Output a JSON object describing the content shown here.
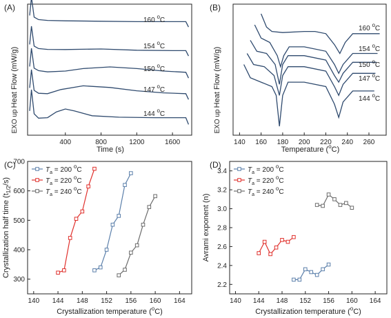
{
  "chart_data": [
    {
      "panel": "(A)",
      "type": "line",
      "xlabel": "Time (s)",
      "ylabel": "Heat Flow (mW/g)",
      "exo_label": "EXO up",
      "x_ticks": [
        "400",
        "800",
        "1200",
        "1600"
      ],
      "xlim": [
        0,
        1800
      ],
      "series": [
        {
          "name": "160 °C",
          "x": [
            0,
            20,
            50,
            100,
            200,
            400,
            800,
            1200,
            1600,
            1750,
            1780
          ],
          "y": [
            0.8,
            3.0,
            0.6,
            0.3,
            0.2,
            0.15,
            0.1,
            0.05,
            0.05,
            0.05,
            -0.6
          ]
        },
        {
          "name": "154 °C",
          "x": [
            0,
            20,
            50,
            100,
            200,
            400,
            800,
            1200,
            1600,
            1750,
            1780
          ],
          "y": [
            0.8,
            3.0,
            0.6,
            0.3,
            0.2,
            0.18,
            0.25,
            0.1,
            0.05,
            0.05,
            -0.6
          ]
        },
        {
          "name": "150 °C",
          "x": [
            0,
            20,
            50,
            100,
            200,
            400,
            600,
            900,
            1200,
            1500,
            1750,
            1780
          ],
          "y": [
            0.8,
            3.0,
            0.6,
            0.3,
            0.15,
            0.25,
            0.55,
            0.75,
            0.55,
            0.25,
            0.1,
            -0.6
          ]
        },
        {
          "name": "147 °C",
          "x": [
            0,
            20,
            50,
            100,
            200,
            350,
            600,
            900,
            1200,
            1500,
            1750,
            1780
          ],
          "y": [
            0.8,
            3.0,
            0.5,
            0.15,
            0.1,
            0.6,
            1.05,
            0.85,
            0.45,
            0.2,
            0.1,
            -0.6
          ]
        },
        {
          "name": "144 °C",
          "x": [
            0,
            20,
            50,
            100,
            200,
            300,
            400,
            500,
            700,
            1000,
            1400,
            1750,
            1780
          ],
          "y": [
            0.8,
            3.0,
            0.5,
            0.05,
            0.1,
            0.7,
            1.0,
            0.8,
            0.3,
            0.15,
            0.1,
            0.1,
            -0.6
          ]
        }
      ]
    },
    {
      "panel": "(B)",
      "type": "line",
      "xlabel": "Temperature (°C)",
      "ylabel": "Heat Flow (mW/g)",
      "exo_label": "EXO up",
      "x_ticks": [
        "140",
        "160",
        "180",
        "200",
        "220",
        "240",
        "260"
      ],
      "xlim": [
        134,
        276
      ],
      "series": [
        {
          "name": "160 °C",
          "x": [
            160,
            165,
            170,
            180,
            200,
            210,
            220,
            228,
            233,
            238,
            245,
            270
          ],
          "y": [
            4.7,
            4.1,
            3.9,
            3.85,
            3.9,
            3.9,
            3.8,
            3.3,
            2.9,
            3.4,
            3.8,
            3.8
          ]
        },
        {
          "name": "154 °C",
          "x": [
            154,
            160,
            168,
            175,
            178,
            181,
            186,
            200,
            220,
            228,
            232,
            236,
            245,
            268
          ],
          "y": [
            4.2,
            3.6,
            3.4,
            2.8,
            2.3,
            2.8,
            3.2,
            3.2,
            3.0,
            2.4,
            2.0,
            2.4,
            2.9,
            2.9
          ]
        },
        {
          "name": "150 °C",
          "x": [
            150,
            156,
            165,
            173,
            177,
            180,
            185,
            200,
            220,
            228,
            232,
            236,
            245,
            267
          ],
          "y": [
            3.5,
            3.0,
            2.9,
            2.4,
            1.5,
            2.4,
            2.8,
            2.8,
            2.6,
            1.9,
            1.6,
            2.0,
            2.5,
            2.5
          ]
        },
        {
          "name": "147 °C",
          "x": [
            147,
            153,
            163,
            172,
            177,
            180,
            185,
            200,
            220,
            228,
            232,
            236,
            245,
            266
          ],
          "y": [
            2.9,
            2.4,
            2.3,
            1.9,
            1.0,
            1.9,
            2.3,
            2.3,
            2.1,
            1.4,
            1.0,
            1.5,
            2.0,
            2.0
          ]
        },
        {
          "name": "144 °C",
          "x": [
            144,
            150,
            160,
            170,
            174,
            177,
            180,
            185,
            200,
            220,
            228,
            232,
            236,
            245,
            265
          ],
          "y": [
            2.4,
            1.8,
            1.6,
            1.4,
            1.0,
            -0.4,
            1.0,
            1.6,
            1.6,
            1.4,
            0.6,
            0.0,
            0.7,
            1.2,
            1.2
          ]
        }
      ]
    },
    {
      "panel": "(C)",
      "type": "line",
      "xlabel": "Crystallization temperature (°C)",
      "ylabel": "Crystallization half time (t",
      "ylabel_sub": "1/2",
      "ylabel_tail": "/s)",
      "xlim": [
        139,
        166
      ],
      "ylim": [
        250,
        700
      ],
      "x_ticks": [
        "140",
        "144",
        "148",
        "152",
        "156",
        "160",
        "164"
      ],
      "y_ticks": [
        "300",
        "400",
        "500",
        "600",
        "700"
      ],
      "legend_var": "T",
      "legend_sub": "a",
      "series": [
        {
          "name": " = 200 °C",
          "color": "#5b7faa",
          "x": [
            150,
            151,
            152,
            153,
            154,
            155,
            156
          ],
          "y": [
            330,
            340,
            400,
            485,
            515,
            620,
            660
          ]
        },
        {
          "name": " = 220 °C",
          "color": "#e0302c",
          "x": [
            144,
            145,
            146,
            147,
            148,
            149,
            150
          ],
          "y": [
            322,
            330,
            440,
            505,
            530,
            615,
            675
          ]
        },
        {
          "name": " = 240 °C",
          "color": "#6b6b6b",
          "x": [
            154,
            155,
            156,
            157,
            158,
            159,
            160
          ],
          "y": [
            313,
            332,
            390,
            415,
            485,
            545,
            582
          ]
        }
      ]
    },
    {
      "panel": "(D)",
      "type": "line",
      "xlabel": "Crystallization temperature (°C)",
      "ylabel": "Avrami exponent (n)",
      "xlim": [
        139,
        166
      ],
      "ylim": [
        2.1,
        3.5
      ],
      "x_ticks": [
        "140",
        "144",
        "148",
        "152",
        "156",
        "160",
        "164"
      ],
      "y_ticks": [
        "2.2",
        "2.4",
        "2.6",
        "2.8",
        "3.0",
        "3.2",
        "3.4"
      ],
      "legend_var": "T",
      "legend_sub": "a",
      "series": [
        {
          "name": " = 200 °C",
          "color": "#5b7faa",
          "x": [
            150,
            151,
            152,
            153,
            154,
            155,
            156
          ],
          "y": [
            2.25,
            2.25,
            2.36,
            2.33,
            2.3,
            2.36,
            2.41
          ]
        },
        {
          "name": " = 220 °C",
          "color": "#e0302c",
          "x": [
            144,
            145,
            146,
            147,
            148,
            149,
            150
          ],
          "y": [
            2.53,
            2.65,
            2.52,
            2.59,
            2.67,
            2.65,
            2.7
          ]
        },
        {
          "name": " = 240 °C",
          "color": "#6b6b6b",
          "x": [
            154,
            155,
            156,
            157,
            158,
            159,
            160
          ],
          "y": [
            3.04,
            3.03,
            3.15,
            3.1,
            3.04,
            3.06,
            3.01
          ]
        }
      ]
    }
  ]
}
